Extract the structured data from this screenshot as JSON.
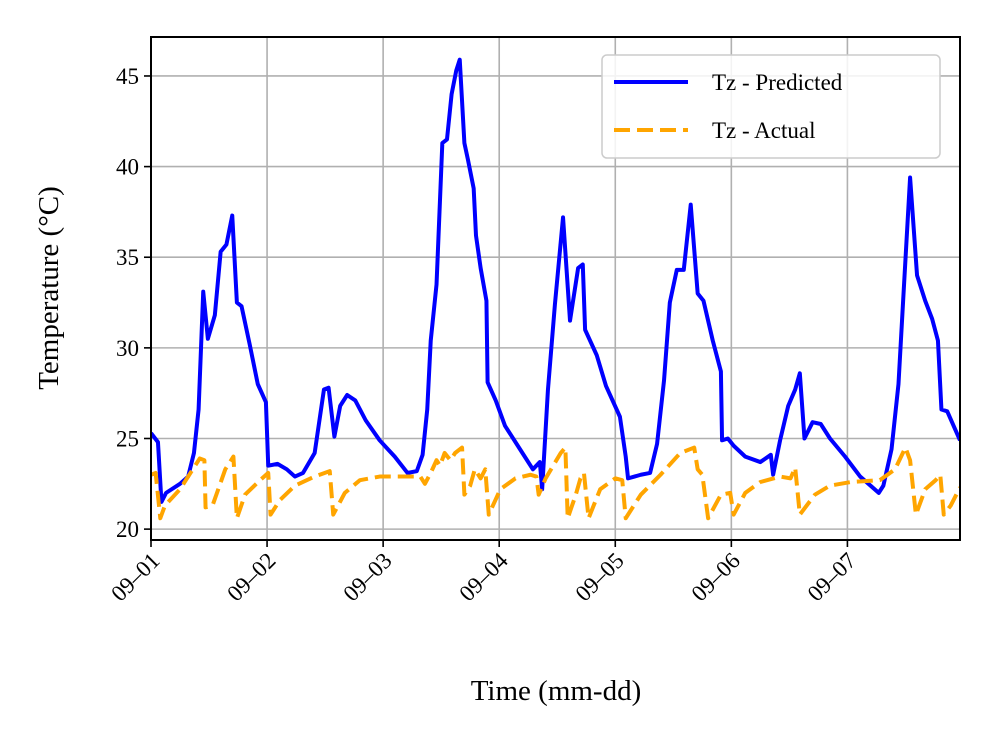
{
  "chart_data": {
    "type": "line",
    "xlabel": "Time (mm-dd)",
    "ylabel": "Temperature (°C)",
    "xlim": [
      0,
      6.97
    ],
    "xticks": [
      {
        "value": 0,
        "label": "09–01"
      },
      {
        "value": 1,
        "label": "09–02"
      },
      {
        "value": 2,
        "label": "09–03"
      },
      {
        "value": 3,
        "label": "09–04"
      },
      {
        "value": 4,
        "label": "09–05"
      },
      {
        "value": 5,
        "label": "09–06"
      },
      {
        "value": 6,
        "label": "09–07"
      }
    ],
    "ylim": [
      19.4,
      47.15
    ],
    "yticks": [
      20,
      25,
      30,
      35,
      40,
      45
    ],
    "grid": true,
    "legend": "upper right",
    "series": [
      {
        "name": "Tz - Predicted",
        "color": "#0000ff",
        "style": "solid",
        "x": [
          0,
          0.06,
          0.09,
          0.13,
          0.25,
          0.32,
          0.37,
          0.41,
          0.45,
          0.49,
          0.55,
          0.6,
          0.65,
          0.7,
          0.74,
          0.78,
          0.85,
          0.92,
          0.99,
          1.01,
          1.09,
          1.17,
          1.24,
          1.31,
          1.41,
          1.49,
          1.53,
          1.58,
          1.63,
          1.69,
          1.76,
          1.85,
          1.97,
          2.1,
          2.21,
          2.29,
          2.34,
          2.38,
          2.41,
          2.46,
          2.51,
          2.55,
          2.59,
          2.63,
          2.66,
          2.7,
          2.73,
          2.78,
          2.8,
          2.84,
          2.89,
          2.9,
          2.97,
          3.05,
          3.18,
          3.29,
          3.35,
          3.37,
          3.42,
          3.48,
          3.55,
          3.61,
          3.68,
          3.72,
          3.74,
          3.84,
          3.92,
          4.04,
          4.09,
          4.11,
          4.22,
          4.3,
          4.36,
          4.42,
          4.47,
          4.53,
          4.59,
          4.65,
          4.71,
          4.76,
          4.84,
          4.91,
          4.92,
          4.97,
          5.02,
          5.12,
          5.25,
          5.34,
          5.36,
          5.42,
          5.49,
          5.55,
          5.59,
          5.63,
          5.7,
          5.77,
          5.85,
          5.98,
          6.11,
          6.27,
          6.31,
          6.38,
          6.44,
          6.48,
          6.54,
          6.6,
          6.67,
          6.73,
          6.78,
          6.81,
          6.86,
          6.97
        ],
        "values": [
          25.3,
          24.8,
          21.5,
          22.0,
          22.5,
          22.9,
          24.2,
          26.6,
          33.1,
          30.5,
          31.8,
          35.3,
          35.7,
          37.3,
          32.5,
          32.3,
          30.2,
          28,
          27,
          23.5,
          23.6,
          23.3,
          22.9,
          23.1,
          24.2,
          27.7,
          27.8,
          25.1,
          26.8,
          27.4,
          27.1,
          26,
          24.9,
          24,
          23.1,
          23.2,
          24.1,
          26.6,
          30.4,
          33.5,
          41.3,
          41.5,
          44,
          45.3,
          45.9,
          41.3,
          40.4,
          38.8,
          36.2,
          34.4,
          32.6,
          28.1,
          27.1,
          25.7,
          24.4,
          23.3,
          23.7,
          22.2,
          27.7,
          32.4,
          37.2,
          31.5,
          34.4,
          34.6,
          31,
          29.6,
          27.9,
          26.2,
          24,
          22.8,
          23,
          23.1,
          24.7,
          28.2,
          32.5,
          34.3,
          34.3,
          37.9,
          33,
          32.6,
          30.4,
          28.7,
          24.9,
          25,
          24.6,
          24,
          23.7,
          24.1,
          23,
          24.9,
          26.8,
          27.7,
          28.6,
          25,
          25.9,
          25.8,
          25,
          24,
          22.9,
          22,
          22.4,
          24.4,
          28,
          32.6,
          39.4,
          34,
          32.6,
          31.6,
          30.4,
          26.6,
          26.5,
          24.9
        ]
      },
      {
        "name": "Tz - Actual",
        "color": "#ffa500",
        "style": "dashed",
        "x": [
          0,
          0.04,
          0.08,
          0.12,
          0.25,
          0.42,
          0.46,
          0.47,
          0.53,
          0.64,
          0.71,
          0.74,
          0.81,
          0.94,
          1.01,
          1.03,
          1.11,
          1.24,
          1.41,
          1.54,
          1.57,
          1.67,
          1.8,
          1.97,
          2.19,
          2.32,
          2.36,
          2.41,
          2.46,
          2.49,
          2.53,
          2.58,
          2.62,
          2.68,
          2.7,
          2.75,
          2.79,
          2.84,
          2.88,
          2.91,
          3.01,
          3.14,
          3.27,
          3.32,
          3.34,
          3.4,
          3.53,
          3.57,
          3.59,
          3.66,
          3.7,
          3.73,
          3.77,
          3.87,
          4,
          4.06,
          4.09,
          4.22,
          4.39,
          4.56,
          4.68,
          4.71,
          4.75,
          4.8,
          4.91,
          4.99,
          5.02,
          5.12,
          5.25,
          5.42,
          5.51,
          5.55,
          5.59,
          5.72,
          5.85,
          6.03,
          6.28,
          6.41,
          6.5,
          6.54,
          6.59,
          6.67,
          6.76,
          6.8,
          6.83,
          6.89,
          6.97
        ],
        "values": [
          23,
          23.1,
          20.6,
          21.3,
          22.2,
          23.9,
          23.8,
          21.2,
          21.3,
          23.3,
          24,
          20.6,
          21.9,
          22.7,
          23.1,
          20.8,
          21.6,
          22.4,
          22.9,
          23.2,
          20.8,
          22,
          22.7,
          22.9,
          22.9,
          22.9,
          22.5,
          23.1,
          23.8,
          23.5,
          24.2,
          23.8,
          24.2,
          24.5,
          21.9,
          22.4,
          23.3,
          22.8,
          23.3,
          20.8,
          22.2,
          22.8,
          23,
          22.9,
          21.9,
          22.8,
          24.2,
          24.5,
          20.6,
          21.9,
          22.8,
          23.1,
          20.6,
          22.2,
          22.8,
          22.7,
          20.6,
          21.9,
          23,
          24.2,
          24.5,
          23.3,
          23,
          20.6,
          21.9,
          22,
          20.8,
          22,
          22.6,
          22.9,
          22.8,
          23.4,
          20.8,
          21.9,
          22.4,
          22.6,
          22.7,
          23.3,
          24.5,
          23.8,
          20.8,
          22.2,
          22.7,
          23,
          20.8,
          21.3,
          22.3
        ]
      }
    ]
  }
}
